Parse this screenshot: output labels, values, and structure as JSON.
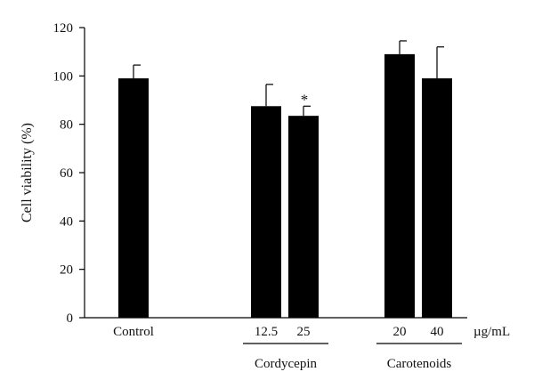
{
  "chart_data": {
    "type": "bar",
    "ylabel": "Cell viability (%)",
    "ylim": [
      0,
      120
    ],
    "yticks": [
      0,
      20,
      40,
      60,
      80,
      100,
      120
    ],
    "unit": "µg/mL",
    "categories": [
      "Control",
      "12.5",
      "25",
      "20",
      "40"
    ],
    "values": [
      99,
      87.5,
      83.5,
      109,
      99
    ],
    "errors": [
      5.5,
      9,
      4,
      5.5,
      13
    ],
    "significance": [
      "",
      "",
      "*",
      "",
      ""
    ],
    "groups": [
      {
        "label": "Cordycepin",
        "members": [
          "12.5",
          "25"
        ]
      },
      {
        "label": "Carotenoids",
        "members": [
          "20",
          "40"
        ]
      }
    ],
    "bar_color": "#000000"
  }
}
